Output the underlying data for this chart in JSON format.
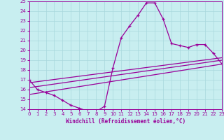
{
  "xlabel": "Windchill (Refroidissement éolien,°C)",
  "bg_color": "#c8eef0",
  "line_color": "#990099",
  "grid_color": "#a8d8dc",
  "xlim": [
    0,
    23
  ],
  "ylim": [
    14,
    25
  ],
  "xticks": [
    0,
    1,
    2,
    3,
    4,
    5,
    6,
    7,
    8,
    9,
    10,
    11,
    12,
    13,
    14,
    15,
    16,
    17,
    18,
    19,
    20,
    21,
    22,
    23
  ],
  "yticks": [
    14,
    15,
    16,
    17,
    18,
    19,
    20,
    21,
    22,
    23,
    24,
    25
  ],
  "curve1_x": [
    0,
    1,
    2,
    3,
    4,
    5,
    6,
    7,
    8,
    9,
    10,
    11,
    12,
    13,
    14,
    15,
    16,
    17,
    18,
    19,
    20,
    21,
    22,
    23
  ],
  "curve1_y": [
    17.0,
    16.0,
    15.7,
    15.4,
    14.9,
    14.4,
    14.1,
    13.8,
    13.75,
    14.3,
    18.2,
    21.3,
    22.5,
    23.6,
    24.85,
    24.85,
    23.2,
    20.7,
    20.5,
    20.3,
    20.6,
    20.6,
    19.7,
    18.65
  ],
  "line1_x": [
    0,
    23
  ],
  "line1_y": [
    15.5,
    18.6
  ],
  "line2_x": [
    0,
    23
  ],
  "line2_y": [
    16.2,
    19.0
  ],
  "line3_x": [
    0,
    23
  ],
  "line3_y": [
    16.7,
    19.25
  ]
}
